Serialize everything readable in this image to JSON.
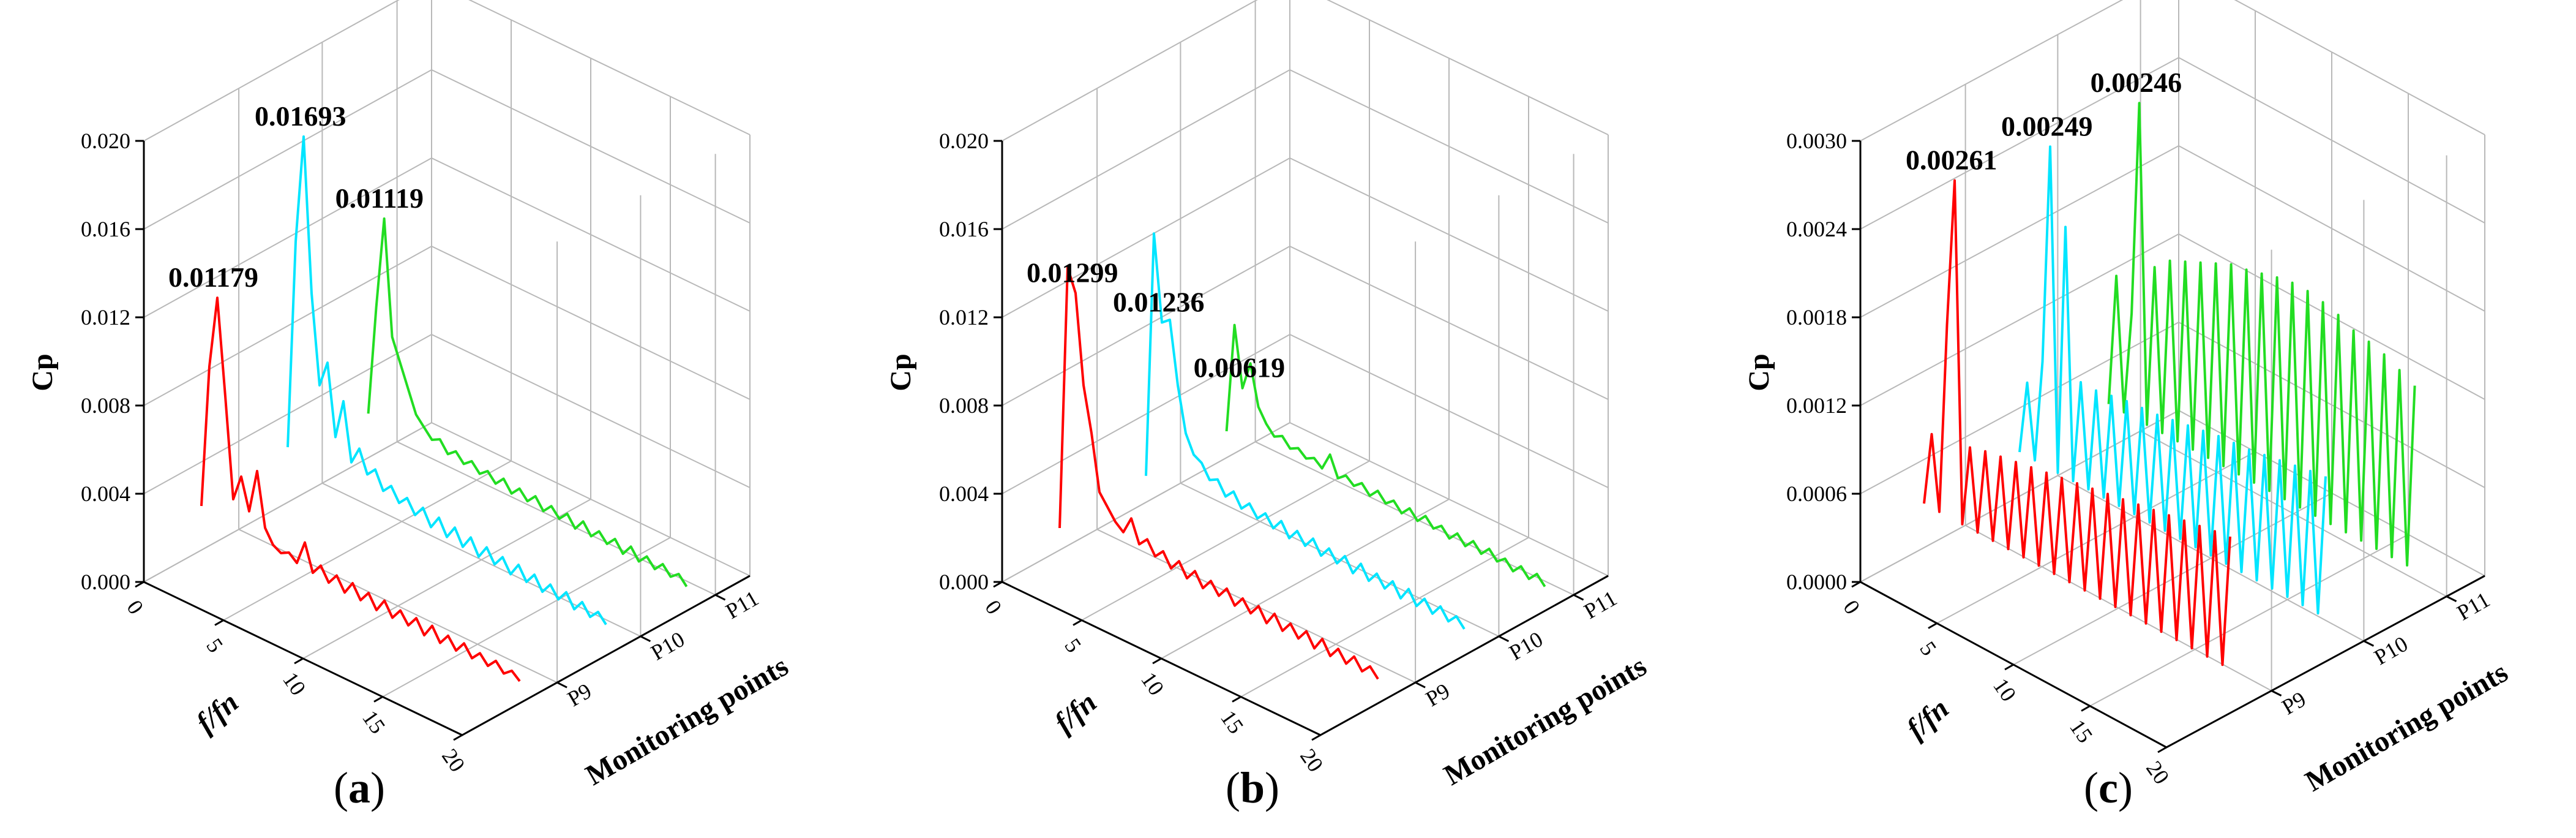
{
  "chart_data": [
    {
      "type": "line",
      "panel": "a",
      "caption": "a",
      "title": "",
      "xlabel": "f/fn",
      "ylabel": "Cp",
      "zlabel": "Monitoring points",
      "xlim": [
        0,
        20
      ],
      "ylim": [
        0,
        0.02
      ],
      "x_ticks": [
        "0",
        "5",
        "10",
        "15",
        "20"
      ],
      "y_ticks": [
        "0.000",
        "0.004",
        "0.008",
        "0.012",
        "0.016",
        "0.020"
      ],
      "depth_ticks": [
        "P9",
        "P10",
        "P11"
      ],
      "series": [
        {
          "name": "P9",
          "color": "#ff0000",
          "peak_x": 1,
          "peak_label": "0.01179",
          "values": [
            0.002,
            0.0085,
            0.01179,
            0.0075,
            0.003,
            0.0042,
            0.0028,
            0.0048,
            0.0024,
            0.0018,
            0.0016,
            0.0018,
            0.0015,
            0.0026,
            0.0014,
            0.0019,
            0.0013,
            0.0018,
            0.0012,
            0.0018,
            0.0012,
            0.0017,
            0.0011,
            0.0017,
            0.0011,
            0.0016,
            0.0011,
            0.0016,
            0.001,
            0.0016,
            0.001,
            0.0015,
            0.001,
            0.0015,
            0.001,
            0.0014,
            0.001,
            0.0014,
            0.001,
            0.0013,
            0.001
          ]
        },
        {
          "name": "P10",
          "color": "#00e5ff",
          "peak_x": 1,
          "peak_label": "0.01693",
          "values": [
            0.0025,
            0.012,
            0.01693,
            0.01,
            0.006,
            0.0072,
            0.004,
            0.0058,
            0.0032,
            0.004,
            0.003,
            0.0034,
            0.0026,
            0.003,
            0.0024,
            0.0028,
            0.0022,
            0.0027,
            0.002,
            0.0026,
            0.0019,
            0.0025,
            0.0018,
            0.0024,
            0.0017,
            0.0023,
            0.0017,
            0.0022,
            0.0016,
            0.0022,
            0.0016,
            0.0021,
            0.0015,
            0.002,
            0.0015,
            0.002,
            0.0014,
            0.0019,
            0.0014,
            0.0018,
            0.0014
          ]
        },
        {
          "name": "P11",
          "color": "#22dd22",
          "peak_x": 1,
          "peak_label": "0.01119",
          "values": [
            0.002,
            0.007,
            0.01119,
            0.006,
            0.005,
            0.004,
            0.003,
            0.0026,
            0.0022,
            0.0024,
            0.0019,
            0.0022,
            0.0018,
            0.0021,
            0.0017,
            0.002,
            0.0016,
            0.002,
            0.0015,
            0.0019,
            0.0015,
            0.0019,
            0.0014,
            0.0018,
            0.0014,
            0.0018,
            0.0013,
            0.0018,
            0.0013,
            0.0017,
            0.0013,
            0.0017,
            0.0012,
            0.0017,
            0.0012,
            0.0016,
            0.0012,
            0.0016,
            0.0012,
            0.0015,
            0.0011
          ]
        }
      ]
    },
    {
      "type": "line",
      "panel": "b",
      "caption": "b",
      "title": "",
      "xlabel": "f/fn",
      "ylabel": "Cp",
      "zlabel": "Monitoring points",
      "xlim": [
        0,
        20
      ],
      "ylim": [
        0,
        0.02
      ],
      "x_ticks": [
        "0",
        "5",
        "10",
        "15",
        "20"
      ],
      "y_ticks": [
        "0.000",
        "0.004",
        "0.008",
        "0.012",
        "0.016",
        "0.020"
      ],
      "depth_ticks": [
        "P9",
        "P10",
        "P11"
      ],
      "series": [
        {
          "name": "P9",
          "color": "#ff0000",
          "peak_x": 1,
          "peak_label": "0.01299",
          "values": [
            0.001,
            0.01299,
            0.012,
            0.008,
            0.006,
            0.0035,
            0.003,
            0.0025,
            0.0022,
            0.003,
            0.002,
            0.0024,
            0.0018,
            0.0022,
            0.0016,
            0.0021,
            0.0015,
            0.002,
            0.0014,
            0.0019,
            0.0014,
            0.0019,
            0.0013,
            0.0018,
            0.0013,
            0.0018,
            0.0012,
            0.0018,
            0.0012,
            0.0017,
            0.0012,
            0.0017,
            0.0011,
            0.0017,
            0.0011,
            0.0016,
            0.0011,
            0.0016,
            0.0011,
            0.0015,
            0.0011
          ]
        },
        {
          "name": "P10",
          "color": "#00e5ff",
          "peak_x": 1,
          "peak_label": "0.01236",
          "values": [
            0.0012,
            0.01236,
            0.0085,
            0.0088,
            0.006,
            0.004,
            0.0032,
            0.003,
            0.0024,
            0.0026,
            0.002,
            0.0024,
            0.0018,
            0.0022,
            0.0017,
            0.0021,
            0.0016,
            0.0021,
            0.0015,
            0.002,
            0.0015,
            0.002,
            0.0014,
            0.0019,
            0.0014,
            0.0019,
            0.0013,
            0.0019,
            0.0013,
            0.0018,
            0.0013,
            0.0018,
            0.0012,
            0.0018,
            0.0012,
            0.0017,
            0.0012,
            0.0017,
            0.0012,
            0.0016,
            0.0012
          ]
        },
        {
          "name": "P11",
          "color": "#22dd22",
          "peak_x": 1,
          "peak_label": "0.00619",
          "values": [
            0.0012,
            0.00619,
            0.0035,
            0.0048,
            0.003,
            0.0024,
            0.002,
            0.0022,
            0.0018,
            0.002,
            0.0017,
            0.0019,
            0.0016,
            0.0024,
            0.0015,
            0.0018,
            0.0015,
            0.0018,
            0.0014,
            0.0018,
            0.0014,
            0.0017,
            0.0013,
            0.0017,
            0.0013,
            0.0017,
            0.0013,
            0.0016,
            0.0012,
            0.0016,
            0.0012,
            0.0016,
            0.0012,
            0.0016,
            0.0012,
            0.0015,
            0.0011,
            0.0015,
            0.0011,
            0.0015,
            0.0011
          ]
        }
      ]
    },
    {
      "type": "line",
      "panel": "c",
      "caption": "c",
      "title": "",
      "xlabel": "f/fn",
      "ylabel": "Cp",
      "zlabel": "Monitoring points",
      "xlim": [
        0,
        20
      ],
      "ylim": [
        0,
        0.003
      ],
      "x_ticks": [
        "0",
        "5",
        "10",
        "15",
        "20"
      ],
      "y_ticks": [
        "0.0000",
        "0.0006",
        "0.0012",
        "0.0018",
        "0.0024",
        "0.0030"
      ],
      "depth_ticks": [
        "P9",
        "P10",
        "P11"
      ],
      "series": [
        {
          "name": "P9",
          "color": "#ff0000",
          "peak_x": 3,
          "peak_label": "0.00261",
          "values": [
            0.0003,
            0.0008,
            0.0003,
            0.0016,
            0.00261,
            0.0003,
            0.00085,
            0.0003,
            0.00088,
            0.0003,
            0.0009,
            0.0003,
            0.00092,
            0.0003,
            0.00094,
            0.0003,
            0.00096,
            0.0003,
            0.00098,
            0.0003,
            0.001,
            0.0003,
            0.00102,
            0.0003,
            0.00104,
            0.0003,
            0.00106,
            0.0003,
            0.00108,
            0.0003,
            0.0011,
            0.0003,
            0.00112,
            0.0003,
            0.00114,
            0.0003,
            0.00116,
            0.0003,
            0.00118,
            0.0003,
            0.0012
          ]
        },
        {
          "name": "P10",
          "color": "#00e5ff",
          "peak_x": 3,
          "peak_label": "0.00249",
          "values": [
            0.0003,
            0.0008,
            0.0003,
            0.001,
            0.00249,
            0.0003,
            0.002,
            0.0003,
            0.001,
            0.0003,
            0.001,
            0.0003,
            0.00102,
            0.0003,
            0.00104,
            0.0003,
            0.00105,
            0.0003,
            0.00106,
            0.0003,
            0.00108,
            0.0003,
            0.0011,
            0.0003,
            0.00112,
            0.0003,
            0.00114,
            0.0003,
            0.00115,
            0.0003,
            0.00116,
            0.0003,
            0.00118,
            0.0003,
            0.0012,
            0.0003,
            0.00122,
            0.0003,
            0.00124,
            0.0003,
            0.00126
          ]
        },
        {
          "name": "P11",
          "color": "#22dd22",
          "peak_x": 3,
          "peak_label": "0.00246",
          "values": [
            0.0003,
            0.0012,
            0.0003,
            0.001,
            0.00246,
            0.0003,
            0.0014,
            0.0003,
            0.0015,
            0.0003,
            0.00155,
            0.0003,
            0.0016,
            0.0003,
            0.00165,
            0.0003,
            0.0017,
            0.0003,
            0.00172,
            0.0003,
            0.00175,
            0.0003,
            0.00178,
            0.0003,
            0.0018,
            0.0003,
            0.0018,
            0.0003,
            0.00178,
            0.0003,
            0.00175,
            0.0003,
            0.0017,
            0.0003,
            0.00168,
            0.0003,
            0.00165,
            0.0003,
            0.0016,
            0.0003,
            0.00155
          ]
        }
      ]
    }
  ]
}
